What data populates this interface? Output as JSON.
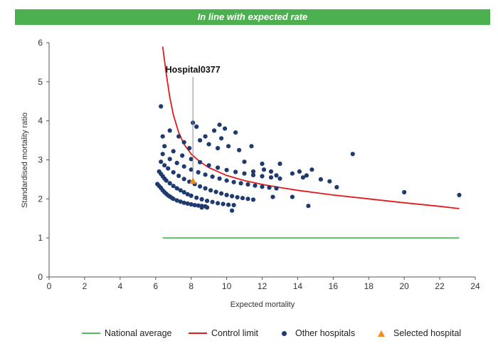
{
  "banner": {
    "text": "In line with expected rate",
    "color": "#4caf50"
  },
  "chart_data": {
    "type": "scatter",
    "title": "",
    "xlabel": "Expected mortality",
    "ylabel": "Standardised mortality ratio",
    "xlim": [
      0,
      24
    ],
    "ylim": [
      0,
      6
    ],
    "xticks": [
      0,
      2,
      4,
      6,
      8,
      10,
      12,
      14,
      16,
      18,
      20,
      22,
      24
    ],
    "yticks": [
      0,
      1,
      2,
      3,
      4,
      5,
      6
    ],
    "grid": false,
    "legend_position": "bottom",
    "series": [
      {
        "name": "National average",
        "kind": "line",
        "color": "#5cb85c",
        "x": [
          6.4,
          23.1
        ],
        "y": [
          1.0,
          1.0
        ]
      },
      {
        "name": "Control limit",
        "kind": "line",
        "color": "#e31a1c",
        "x": [
          6.4,
          6.6,
          6.8,
          7.0,
          7.3,
          7.6,
          8.0,
          8.5,
          9.0,
          9.5,
          10.0,
          11.0,
          12.0,
          13.0,
          14.0,
          15.0,
          16.0,
          18.0,
          20.0,
          22.0,
          23.1
        ],
        "y": [
          5.9,
          5.2,
          4.6,
          4.15,
          3.7,
          3.4,
          3.15,
          2.95,
          2.8,
          2.7,
          2.6,
          2.47,
          2.37,
          2.29,
          2.22,
          2.16,
          2.1,
          2.0,
          1.9,
          1.81,
          1.75
        ]
      },
      {
        "name": "Other hospitals",
        "kind": "scatter",
        "color": "#1f3a6e",
        "x": [
          6.1,
          6.2,
          6.3,
          6.4,
          6.5,
          6.6,
          6.7,
          6.8,
          6.9,
          7.0,
          7.2,
          7.4,
          7.6,
          7.8,
          8.0,
          8.2,
          8.4,
          8.6,
          8.8,
          6.2,
          6.3,
          6.4,
          6.5,
          6.6,
          6.8,
          7.0,
          7.2,
          7.4,
          7.6,
          7.8,
          8.0,
          8.3,
          8.6,
          8.9,
          9.2,
          9.5,
          9.8,
          10.1,
          10.4,
          6.3,
          6.5,
          6.7,
          7.0,
          7.3,
          7.6,
          7.9,
          8.2,
          8.5,
          8.8,
          9.1,
          9.4,
          9.7,
          10.0,
          10.3,
          10.6,
          10.9,
          11.2,
          11.5,
          6.4,
          6.8,
          7.2,
          7.6,
          8.0,
          8.4,
          8.8,
          9.2,
          9.6,
          10.0,
          10.4,
          10.8,
          11.2,
          11.6,
          12.0,
          12.4,
          12.8,
          6.5,
          7.0,
          7.5,
          8.0,
          8.5,
          9.0,
          9.5,
          10.0,
          10.5,
          11.0,
          11.5,
          12.0,
          12.5,
          13.0,
          6.3,
          6.4,
          6.8,
          7.3,
          7.6,
          7.9,
          8.1,
          8.3,
          8.5,
          8.8,
          9.0,
          9.3,
          9.5,
          9.6,
          9.7,
          9.9,
          10.1,
          10.5,
          10.7,
          11.0,
          11.4,
          11.5,
          12.0,
          12.1,
          12.5,
          12.8,
          13.0,
          13.7,
          14.1,
          14.3,
          14.5,
          14.8,
          15.3,
          15.8,
          16.2,
          17.1,
          20.0,
          23.1,
          8.6,
          8.9,
          10.3,
          14.6,
          13.7,
          12.6
        ],
        "y": [
          2.38,
          2.33,
          2.28,
          2.22,
          2.17,
          2.13,
          2.09,
          2.06,
          2.03,
          2.0,
          1.96,
          1.93,
          1.9,
          1.88,
          1.86,
          1.84,
          1.83,
          1.82,
          1.81,
          2.7,
          2.64,
          2.58,
          2.52,
          2.47,
          2.4,
          2.33,
          2.27,
          2.22,
          2.17,
          2.12,
          2.08,
          2.03,
          1.99,
          1.95,
          1.92,
          1.89,
          1.87,
          1.85,
          1.84,
          2.95,
          2.86,
          2.78,
          2.68,
          2.59,
          2.51,
          2.44,
          2.38,
          2.32,
          2.27,
          2.22,
          2.18,
          2.14,
          2.1,
          2.07,
          2.04,
          2.02,
          2.0,
          1.98,
          3.15,
          3.02,
          2.92,
          2.83,
          2.75,
          2.68,
          2.62,
          2.57,
          2.52,
          2.47,
          2.43,
          2.4,
          2.37,
          2.34,
          2.31,
          2.29,
          2.27,
          3.35,
          3.22,
          3.11,
          3.02,
          2.94,
          2.86,
          2.8,
          2.74,
          2.69,
          2.65,
          2.61,
          2.58,
          2.55,
          2.52,
          4.37,
          3.6,
          3.75,
          3.6,
          3.45,
          3.3,
          3.95,
          3.85,
          3.5,
          3.6,
          3.4,
          3.75,
          3.3,
          3.9,
          3.55,
          3.8,
          3.35,
          3.7,
          3.25,
          2.95,
          3.35,
          2.7,
          2.9,
          2.75,
          2.7,
          2.6,
          2.9,
          2.65,
          2.7,
          2.55,
          2.6,
          2.75,
          2.5,
          2.45,
          2.3,
          3.15,
          2.17,
          2.1,
          1.78,
          1.78,
          1.7,
          1.82,
          2.05,
          2.05
        ]
      },
      {
        "name": "Selected hospital",
        "kind": "scatter",
        "color": "#f28c1e",
        "x": [
          8.1
        ],
        "y": [
          2.46
        ],
        "annotation": "Hospital0377"
      }
    ]
  }
}
